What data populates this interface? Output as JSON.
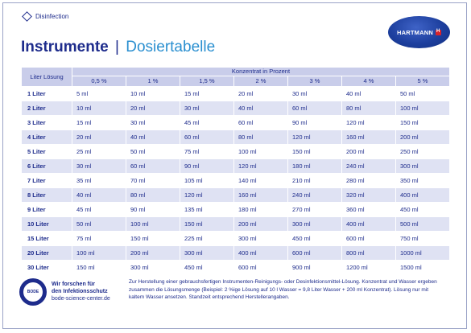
{
  "header": {
    "category": "Disinfection",
    "title_main": "Instrumente",
    "title_separator": "|",
    "title_sub": "Dosiertabelle",
    "logo_text": "HARTMANN"
  },
  "table": {
    "row_header": "Liter Lösung",
    "group_header": "Konzentrat in Prozent",
    "concentrations": [
      "0,5 %",
      "1 %",
      "1,5 %",
      "2 %",
      "3 %",
      "4 %",
      "5 %"
    ],
    "rows": [
      {
        "label": "1 Liter",
        "values": [
          "5 ml",
          "10 ml",
          "15 ml",
          "20 ml",
          "30 ml",
          "40 ml",
          "50 ml"
        ]
      },
      {
        "label": "2 Liter",
        "values": [
          "10 ml",
          "20 ml",
          "30 ml",
          "40 ml",
          "60 ml",
          "80 ml",
          "100 ml"
        ]
      },
      {
        "label": "3 Liter",
        "values": [
          "15 ml",
          "30 ml",
          "45 ml",
          "60 ml",
          "90 ml",
          "120 ml",
          "150 ml"
        ]
      },
      {
        "label": "4 Liter",
        "values": [
          "20 ml",
          "40 ml",
          "60 ml",
          "80 ml",
          "120 ml",
          "160 ml",
          "200 ml"
        ]
      },
      {
        "label": "5 Liter",
        "values": [
          "25 ml",
          "50 ml",
          "75 ml",
          "100 ml",
          "150 ml",
          "200 ml",
          "250 ml"
        ]
      },
      {
        "label": "6 Liter",
        "values": [
          "30 ml",
          "60 ml",
          "90 ml",
          "120 ml",
          "180 ml",
          "240 ml",
          "300 ml"
        ]
      },
      {
        "label": "7 Liter",
        "values": [
          "35 ml",
          "70 ml",
          "105 ml",
          "140 ml",
          "210 ml",
          "280 ml",
          "350 ml"
        ]
      },
      {
        "label": "8 Liter",
        "values": [
          "40 ml",
          "80 ml",
          "120 ml",
          "160 ml",
          "240 ml",
          "320 ml",
          "400 ml"
        ]
      },
      {
        "label": "9 Liter",
        "values": [
          "45 ml",
          "90 ml",
          "135 ml",
          "180 ml",
          "270 ml",
          "360 ml",
          "450 ml"
        ]
      },
      {
        "label": "10 Liter",
        "values": [
          "50 ml",
          "100 ml",
          "150 ml",
          "200 ml",
          "300 ml",
          "400 ml",
          "500 ml"
        ]
      },
      {
        "label": "15 Liter",
        "values": [
          "75 ml",
          "150 ml",
          "225 ml",
          "300 ml",
          "450 ml",
          "600 ml",
          "750 ml"
        ]
      },
      {
        "label": "20 Liter",
        "values": [
          "100 ml",
          "200 ml",
          "300 ml",
          "400 ml",
          "600 ml",
          "800 ml",
          "1000 ml"
        ]
      },
      {
        "label": "30 Liter",
        "values": [
          "150 ml",
          "300 ml",
          "450 ml",
          "600 ml",
          "900 ml",
          "1200 ml",
          "1500 ml"
        ]
      }
    ]
  },
  "footer": {
    "seal_text": "BODE",
    "research_line1": "Wir forschen für",
    "research_line2": "den Infektionsschutz",
    "research_url": "bode-science-center.de",
    "note": "Zur Herstellung einer gebrauchsfertigen Instrumenten-Reinigungs- oder Desinfektionsmittel-Lösung. Konzentrat und Wasser ergeben zusammen die Lösungsmenge (Beispiel: 2 %ige Lösung auf 10 l Wasser = 9,8 Liter Wasser + 200 ml Konzentrat). Lösung nur mit kaltem Wasser ansetzen. Standzeit entsprechend Herstellerangaben."
  },
  "colors": {
    "brand_blue": "#1e2c8c",
    "accent_blue": "#2a8fd0",
    "row_shade": "#dfe2f3",
    "header_shade": "#c9cdea",
    "logo_red": "#d8232a"
  }
}
